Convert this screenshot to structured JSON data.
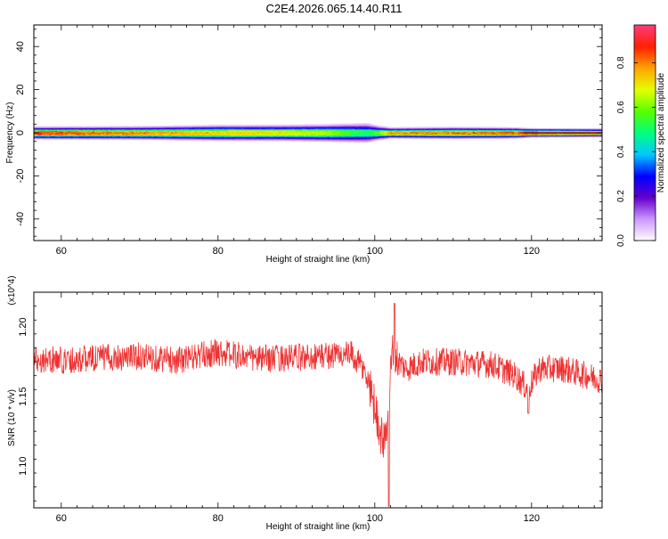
{
  "figure": {
    "title": "C2E4.2026.065.14.40.R11"
  },
  "colors": {
    "snr_line": "#ee3333",
    "spectrogram_center": "#dd1111",
    "colorbar_stops": [
      "#ffffff",
      "#cc99ff",
      "#6600cc",
      "#0000ff",
      "#00c8ff",
      "#00ff80",
      "#55ff00",
      "#e6ff00",
      "#ffa500",
      "#ff2000",
      "#ff3a7a"
    ]
  },
  "chart_data": [
    {
      "type": "heatmap",
      "name": "spectrogram",
      "title": "",
      "xlabel": "Height of straight line (km)",
      "ylabel": "Frequency (Hz)",
      "xlim": [
        56.5,
        129
      ],
      "ylim": [
        -50,
        50
      ],
      "xticks": [
        60,
        80,
        100,
        120
      ],
      "yticks": [
        -40,
        -20,
        0,
        20,
        40
      ],
      "grid": false,
      "colorbar": {
        "label": "Normalized spectral amplitude",
        "range": [
          0,
          0.97
        ],
        "ticks": [
          0.0,
          0.2,
          0.4,
          0.6,
          0.8
        ]
      },
      "band_profile": {
        "x_km": [
          57,
          60,
          70,
          80,
          88,
          94,
          97,
          99,
          100.5,
          102,
          110,
          118,
          120,
          129
        ],
        "halfwidth_hz": [
          2.5,
          2.6,
          2.7,
          3.2,
          3.3,
          3.6,
          4.0,
          4.2,
          3.0,
          2.2,
          2.4,
          2.2,
          1.8,
          1.6
        ],
        "peak_level": [
          0.9,
          0.85,
          0.8,
          0.75,
          0.7,
          0.65,
          0.55,
          0.5,
          0.6,
          0.8,
          0.82,
          0.85,
          0.92,
          0.95
        ]
      }
    },
    {
      "type": "line",
      "name": "snr",
      "title": "",
      "xlabel": "Height of straight line (km)",
      "ylabel": "SNR (10 * v/v)",
      "y_multiplier": "(x10^4)",
      "xlim": [
        56.5,
        129
      ],
      "ylim": [
        1.07,
        1.225
      ],
      "xticks": [
        60,
        80,
        100,
        120
      ],
      "yticks": [
        1.1,
        1.15,
        1.2
      ],
      "grid": false,
      "trend": {
        "x": [
          56.5,
          60,
          65,
          70,
          75,
          80,
          85,
          90,
          95,
          97,
          98.5,
          99.5,
          100.5,
          101.2,
          101.8,
          102.3,
          103,
          104,
          106,
          110,
          115,
          118,
          119.5,
          121,
          124,
          129
        ],
        "y": [
          1.177,
          1.176,
          1.178,
          1.179,
          1.176,
          1.182,
          1.177,
          1.178,
          1.18,
          1.18,
          1.17,
          1.155,
          1.13,
          1.115,
          1.15,
          1.185,
          1.175,
          1.17,
          1.175,
          1.175,
          1.173,
          1.165,
          1.155,
          1.17,
          1.17,
          1.162
        ]
      },
      "noise_amplitude": 0.01,
      "extremes": [
        {
          "x": 101.8,
          "y": 1.071
        },
        {
          "x": 102.5,
          "y": 1.217
        },
        {
          "x": 119.6,
          "y": 1.138
        }
      ]
    }
  ]
}
